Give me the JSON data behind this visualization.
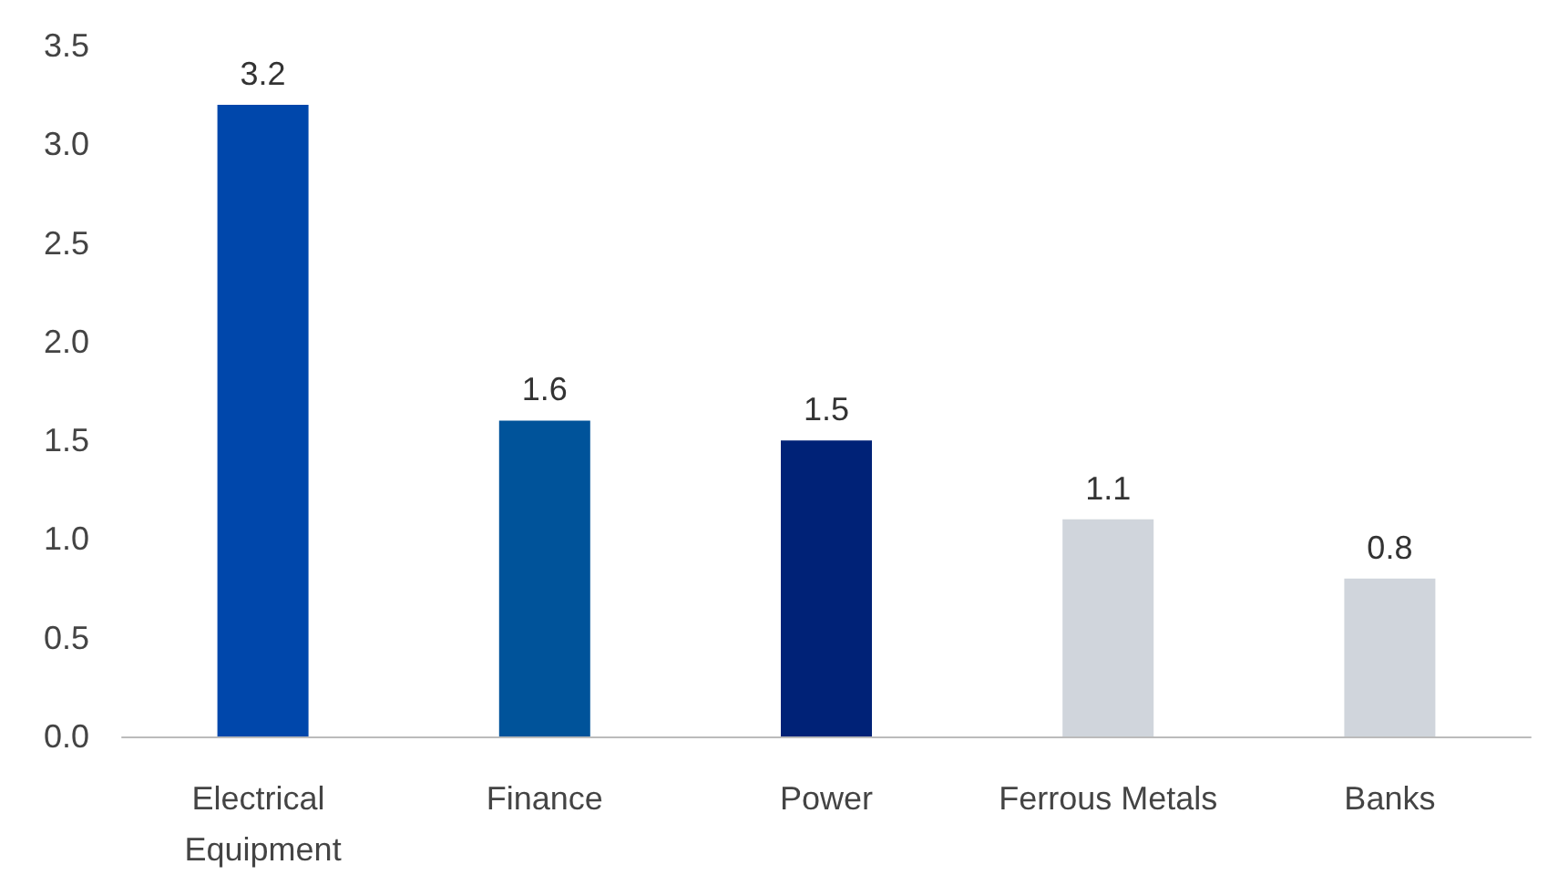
{
  "chart_data": {
    "type": "bar",
    "categories": [
      "Electrical Equipment",
      "Finance",
      "Power",
      "Ferrous Metals",
      "Banks"
    ],
    "values": [
      3.2,
      1.6,
      1.5,
      1.1,
      0.8
    ],
    "colors": [
      "#0047ab",
      "#00539a",
      "#002277",
      "#d0d5dc",
      "#d0d5dc"
    ],
    "ylim": [
      0,
      3.5
    ],
    "yticks": [
      {
        "value": 0,
        "label": "0.0"
      },
      {
        "value": 0.5,
        "label": "0.5"
      },
      {
        "value": 1,
        "label": "1.0"
      },
      {
        "value": 1.5,
        "label": "1.5"
      },
      {
        "value": 2,
        "label": "2.0"
      },
      {
        "value": 2.5,
        "label": "2.5"
      },
      {
        "value": 3,
        "label": "3.0"
      },
      {
        "value": 3.5,
        "label": "3.5"
      }
    ],
    "data_labels": true,
    "grid": false
  }
}
